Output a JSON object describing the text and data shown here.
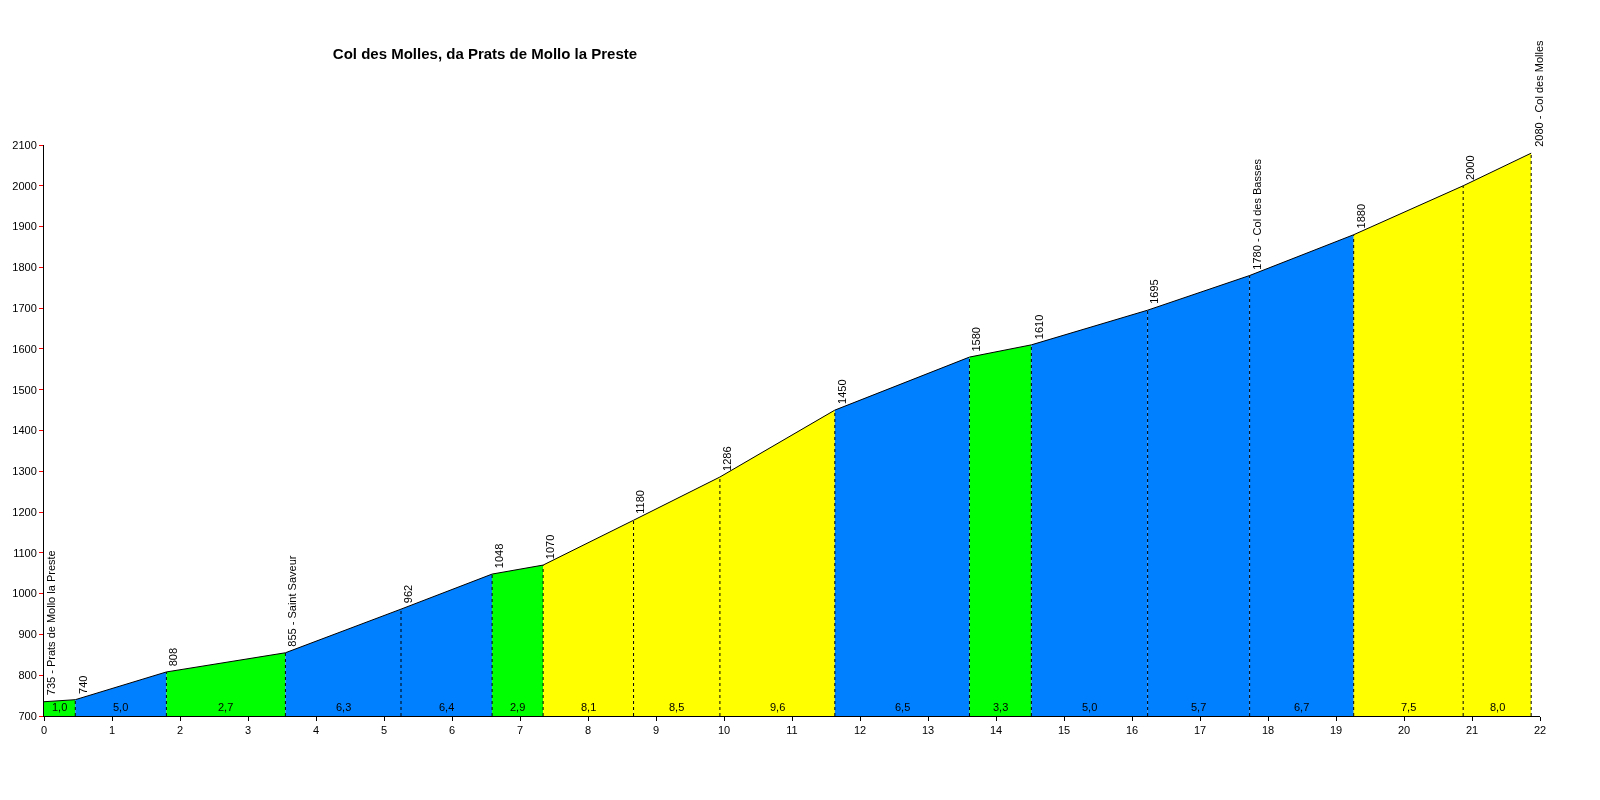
{
  "chart_data": {
    "type": "area",
    "title": "Col des Molles, da Prats de Mollo la Preste",
    "series": [
      {
        "color": "#00ff00",
        "x": [
          0,
          0.46
        ],
        "values": [
          735,
          740
        ]
      },
      {
        "color": "#0080ff",
        "x": [
          0.46,
          1.8
        ],
        "values": [
          740,
          808
        ]
      },
      {
        "color": "#00ff00",
        "x": [
          1.8,
          3.55
        ],
        "values": [
          808,
          855
        ]
      },
      {
        "color": "#0080ff",
        "x": [
          3.55,
          5.25
        ],
        "values": [
          855,
          962
        ]
      },
      {
        "color": "#0080ff",
        "x": [
          5.25,
          6.59
        ],
        "values": [
          962,
          1048
        ]
      },
      {
        "color": "#00ff00",
        "x": [
          6.59,
          7.34
        ],
        "values": [
          1048,
          1070
        ]
      },
      {
        "color": "#ffff00",
        "x": [
          7.34,
          8.67
        ],
        "values": [
          1070,
          1180
        ]
      },
      {
        "color": "#ffff00",
        "x": [
          8.67,
          9.94
        ],
        "values": [
          1180,
          1286
        ]
      },
      {
        "color": "#ffff00",
        "x": [
          9.94,
          11.63
        ],
        "values": [
          1286,
          1450
        ]
      },
      {
        "color": "#0080ff",
        "x": [
          11.63,
          13.61
        ],
        "values": [
          1450,
          1580
        ]
      },
      {
        "color": "#00ff00",
        "x": [
          13.61,
          14.52
        ],
        "values": [
          1580,
          1610
        ]
      },
      {
        "color": "#0080ff",
        "x": [
          14.52,
          16.23
        ],
        "values": [
          1610,
          1695
        ]
      },
      {
        "color": "#0080ff",
        "x": [
          16.23,
          17.73
        ],
        "values": [
          1695,
          1780
        ]
      },
      {
        "color": "#0080ff",
        "x": [
          17.73,
          19.26
        ],
        "values": [
          1780,
          1880
        ]
      },
      {
        "color": "#ffff00",
        "x": [
          19.26,
          20.87
        ],
        "values": [
          1880,
          2000
        ]
      },
      {
        "color": "#ffff00",
        "x": [
          20.87,
          21.87
        ],
        "values": [
          2000,
          2080
        ]
      }
    ],
    "annotations": [
      {
        "text": "735 - Prats de Mollo la Preste",
        "x": 0,
        "y": 735
      },
      {
        "text": "740",
        "x": 0.46,
        "y": 740
      },
      {
        "text": "808",
        "x": 1.8,
        "y": 808
      },
      {
        "text": "855 - Saint Saveur",
        "x": 3.55,
        "y": 855
      },
      {
        "text": "962",
        "x": 5.25,
        "y": 962
      },
      {
        "text": "1048",
        "x": 6.59,
        "y": 1048
      },
      {
        "text": "1070",
        "x": 7.34,
        "y": 1070
      },
      {
        "text": "1180",
        "x": 8.67,
        "y": 1180
      },
      {
        "text": "1286",
        "x": 9.94,
        "y": 1286
      },
      {
        "text": "1450",
        "x": 11.63,
        "y": 1450
      },
      {
        "text": "1580",
        "x": 13.61,
        "y": 1580
      },
      {
        "text": "1610",
        "x": 14.52,
        "y": 1610
      },
      {
        "text": "1695",
        "x": 16.23,
        "y": 1695
      },
      {
        "text": "1780 - Col des Basses",
        "x": 17.73,
        "y": 1780
      },
      {
        "text": "1880",
        "x": 19.26,
        "y": 1880
      },
      {
        "text": "2000",
        "x": 20.87,
        "y": 2000
      },
      {
        "text": "2080 - Col des Molles",
        "x": 21.87,
        "y": 2080
      },
      "1,0",
      "5,0",
      "2,7",
      "6,3",
      "6,4",
      "2,9",
      "8,1",
      "8,5",
      "9,6",
      "6,5",
      "3,3",
      "5,0",
      "5,7",
      "6,7",
      "7,5",
      "8,0"
    ],
    "xlim": [
      0,
      22
    ],
    "xticks": [
      0,
      1,
      2,
      3,
      4,
      5,
      6,
      7,
      8,
      9,
      10,
      11,
      12,
      13,
      14,
      15,
      16,
      17,
      18,
      19,
      20,
      21,
      22
    ],
    "ylim": [
      700,
      2100
    ],
    "yticks": [
      700,
      800,
      900,
      1000,
      1100,
      1200,
      1300,
      1400,
      1500,
      1600,
      1700,
      1800,
      1900,
      2000,
      2100
    ]
  }
}
